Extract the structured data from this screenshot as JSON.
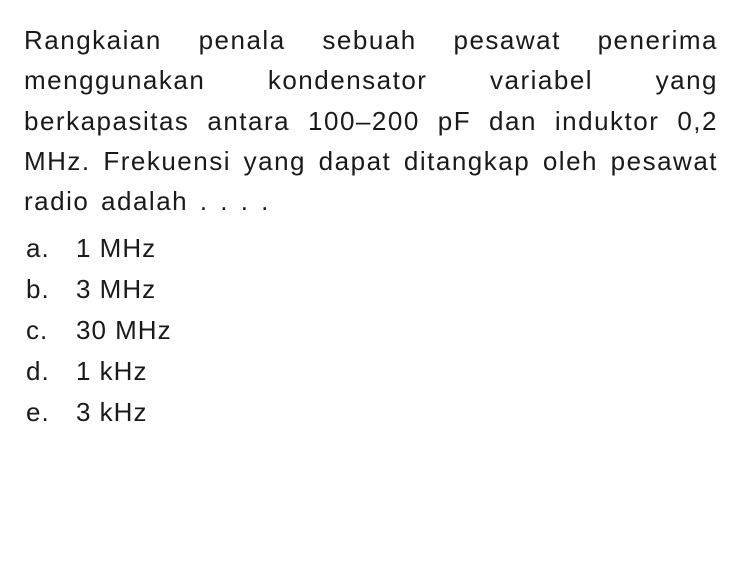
{
  "question": {
    "text": "Rangkaian penala sebuah pesawat penerima menggunakan kondensator variabel yang berkapasitas antara 100–200 pF dan induktor 0,2 MHz. Frekuensi yang dapat ditangkap oleh pesawat radio adalah . . . .",
    "font_size": 26,
    "line_height": 1.55,
    "letter_spacing": 1.5,
    "text_color": "#1a1a1a",
    "background_color": "#ffffff"
  },
  "options": [
    {
      "label": "a.",
      "value": "1 MHz"
    },
    {
      "label": "b.",
      "value": "3 MHz"
    },
    {
      "label": "c.",
      "value": "30 MHz"
    },
    {
      "label": "d.",
      "value": "1 kHz"
    },
    {
      "label": "e.",
      "value": "3 kHz"
    }
  ],
  "option_style": {
    "font_size": 26,
    "line_height": 1.5,
    "letter_spacing": 1
  }
}
